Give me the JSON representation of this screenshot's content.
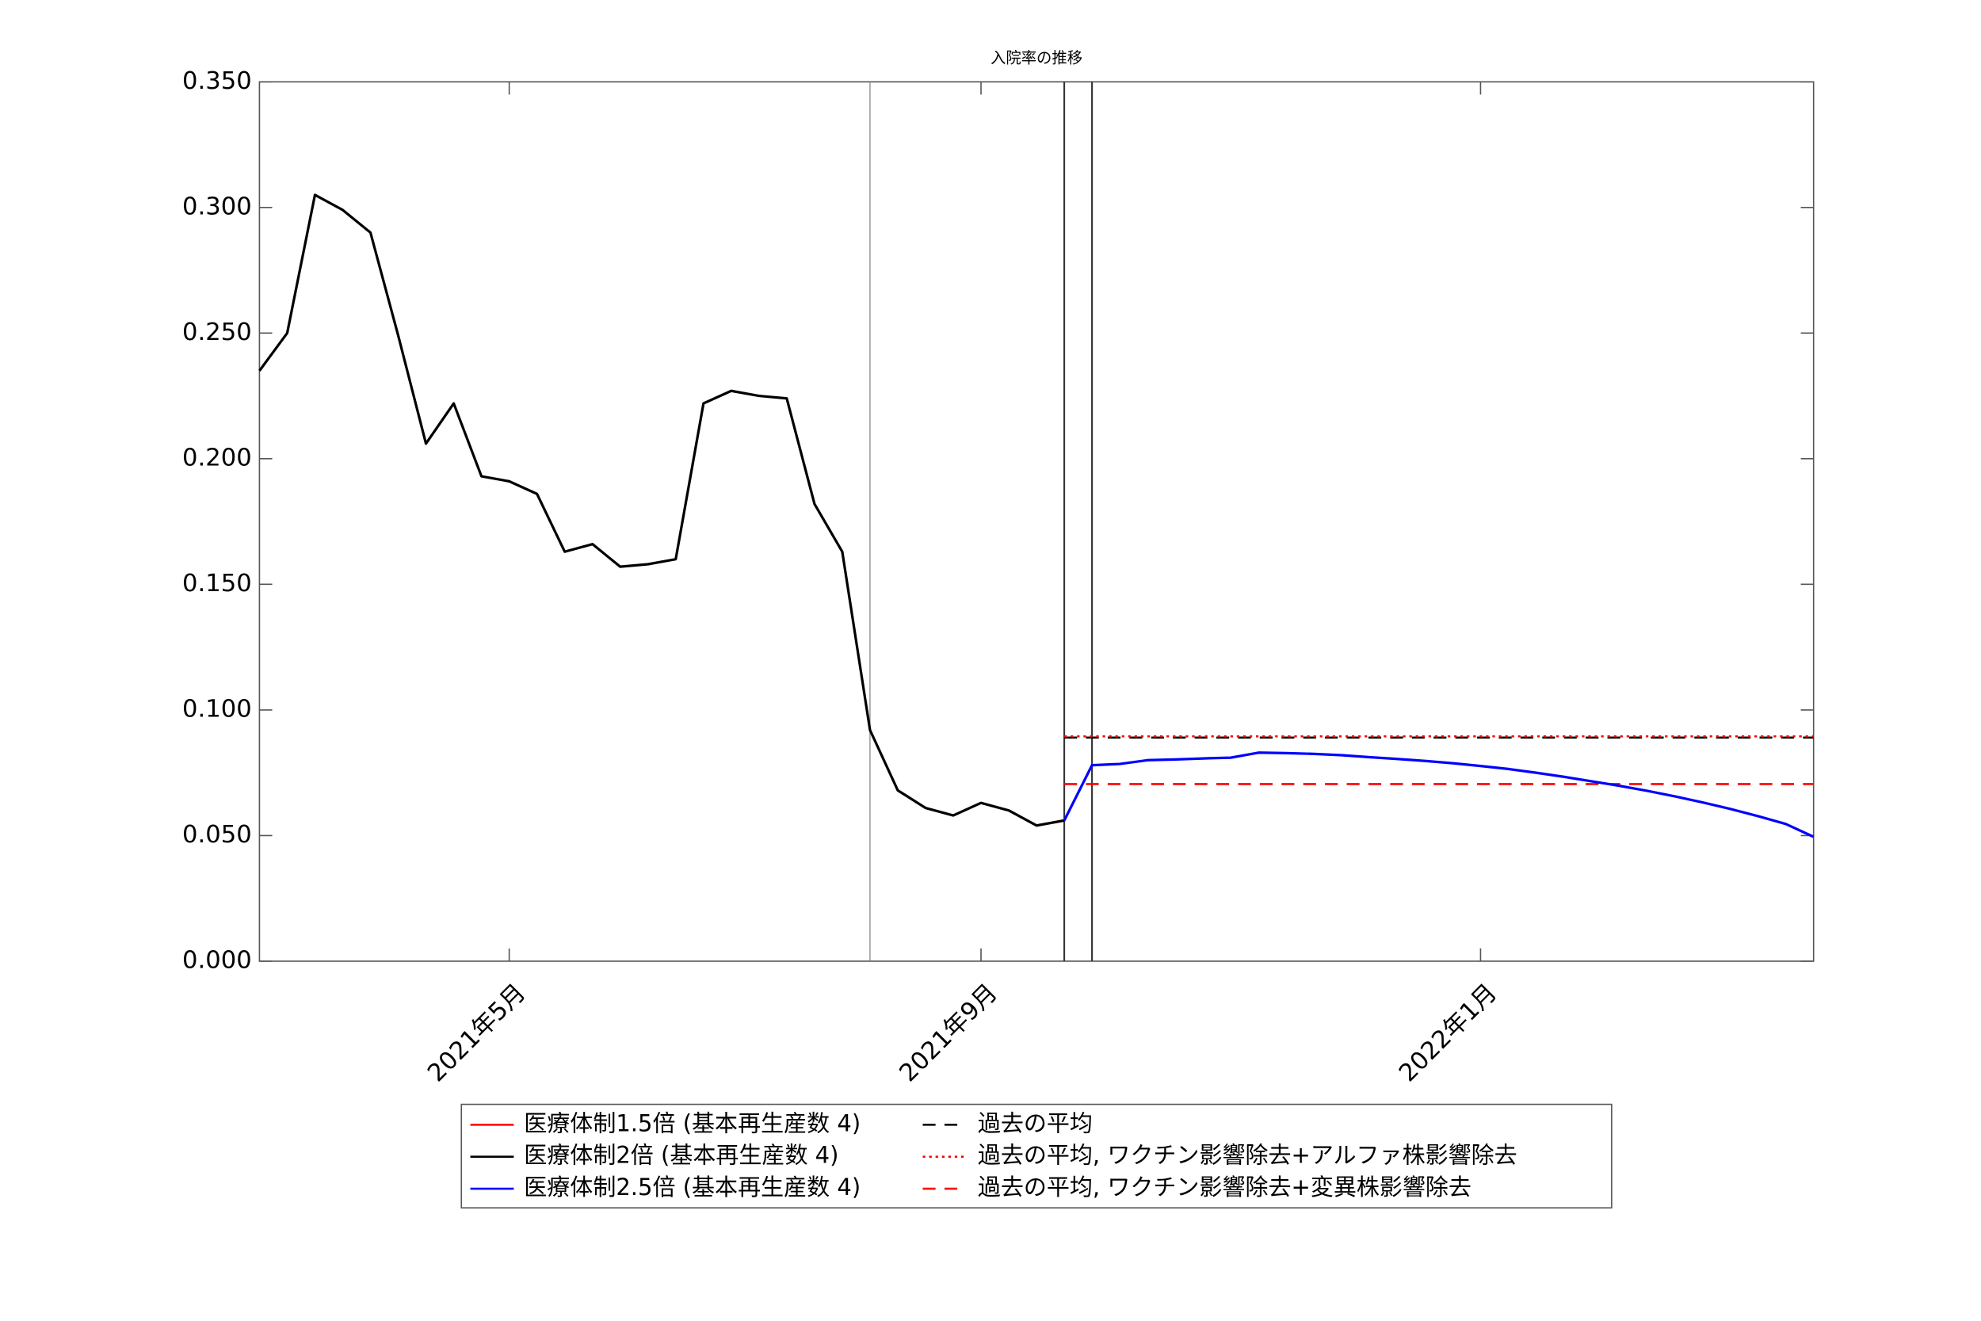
{
  "chart_data": {
    "type": "line",
    "title": "入院率の推移",
    "categories": [
      null,
      null,
      null,
      null,
      null,
      null,
      null,
      null,
      null,
      "2021年5月",
      null,
      null,
      null,
      null,
      null,
      null,
      null,
      null,
      null,
      null,
      null,
      null,
      null,
      null,
      null,
      null,
      "2021年9月",
      null,
      null,
      null,
      null,
      null,
      null,
      null,
      null,
      null,
      null,
      null,
      null,
      null,
      null,
      null,
      null,
      null,
      "2022年1月",
      null,
      null,
      null,
      null,
      null,
      null,
      null,
      null,
      null,
      null,
      null,
      null
    ],
    "series": [
      {
        "name": "医療体制1.5倍 (基本再生産数 4)",
        "color": "#ff0000",
        "values": [
          null,
          null,
          null,
          null,
          null,
          null,
          null,
          null,
          null,
          null,
          null,
          null,
          null,
          null,
          null,
          null,
          null,
          null,
          null,
          null,
          null,
          null,
          null,
          null,
          null,
          null,
          null,
          null,
          null,
          null,
          null,
          null,
          null,
          null,
          null,
          null,
          null,
          null,
          null,
          null,
          null,
          null,
          null,
          null,
          null,
          null,
          null,
          null,
          null,
          null,
          null,
          null,
          null,
          null,
          null,
          null,
          null
        ]
      },
      {
        "name": "医療体制2倍 (基本再生産数 4)",
        "color": "#000000",
        "values": [
          0.235,
          0.25,
          0.305,
          0.299,
          0.29,
          0.249,
          0.206,
          0.222,
          0.193,
          0.191,
          0.186,
          0.163,
          0.166,
          0.157,
          0.158,
          0.16,
          0.222,
          0.227,
          0.225,
          0.224,
          0.182,
          0.163,
          0.092,
          0.068,
          0.061,
          0.058,
          0.063,
          0.06,
          0.054,
          0.056,
          null,
          null,
          null,
          null,
          null,
          null,
          null,
          null,
          null,
          null,
          null,
          null,
          null,
          null,
          null,
          null,
          null,
          null,
          null,
          null,
          null,
          null,
          null,
          null,
          null,
          null,
          null
        ]
      },
      {
        "name": "医療体制2.5倍 (基本再生産数 4)",
        "color": "#0000ff",
        "values": [
          null,
          null,
          null,
          null,
          null,
          null,
          null,
          null,
          null,
          null,
          null,
          null,
          null,
          null,
          null,
          null,
          null,
          null,
          null,
          null,
          null,
          null,
          null,
          null,
          null,
          null,
          null,
          null,
          null,
          0.056,
          0.078,
          0.0785,
          0.08,
          0.0803,
          0.0807,
          0.081,
          0.083,
          0.0828,
          0.0825,
          0.082,
          0.0812,
          0.0805,
          0.0797,
          0.0788,
          0.0777,
          0.0765,
          0.075,
          0.0734,
          0.0716,
          0.0698,
          0.0678,
          0.0656,
          0.0632,
          0.0606,
          0.0577,
          0.0546,
          0.0495
        ]
      }
    ],
    "reference_lines": [
      {
        "name": "過去の平均",
        "color": "#000000",
        "style": "dashed",
        "value": 0.089,
        "start": 29
      },
      {
        "name": "過去の平均, ワクチン影響除去+アルファ株影響除去",
        "color": "#ff0000",
        "style": "dotted",
        "value": 0.0895,
        "start": 29
      },
      {
        "name": "過去の平均, ワクチン影響除去+変異株影響除去",
        "color": "#ff0000",
        "style": "dashed",
        "value": 0.0705,
        "start": 29
      }
    ],
    "vlines": [
      22,
      29,
      30
    ],
    "ylim": [
      0,
      0.35
    ],
    "yticks": [
      {
        "value": 0,
        "label": "0.000"
      },
      {
        "value": 0.05,
        "label": "0.050"
      },
      {
        "value": 0.1,
        "label": "0.100"
      },
      {
        "value": 0.15,
        "label": "0.150"
      },
      {
        "value": 0.2,
        "label": "0.200"
      },
      {
        "value": 0.25,
        "label": "0.250"
      },
      {
        "value": 0.3,
        "label": "0.300"
      },
      {
        "value": 0.35,
        "label": "0.350"
      }
    ]
  }
}
